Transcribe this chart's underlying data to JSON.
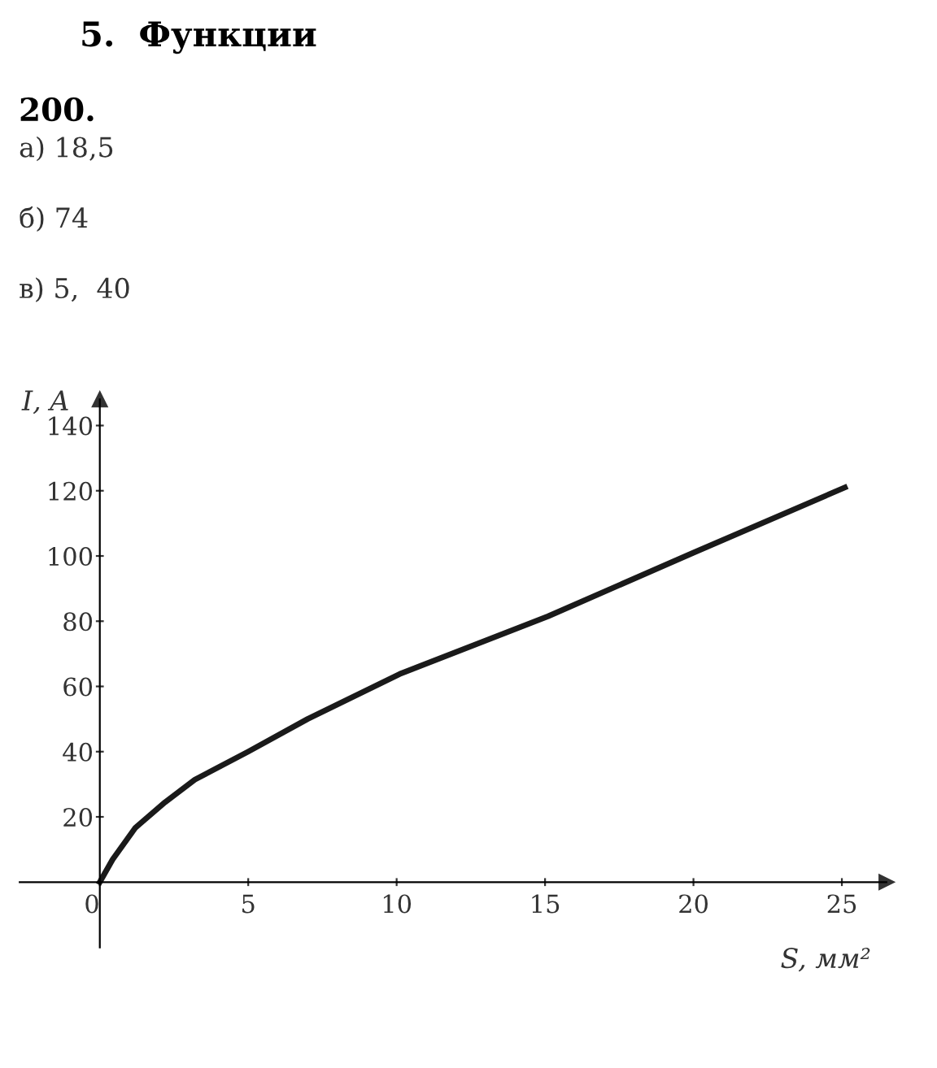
{
  "chart_data": {
    "type": "line",
    "title": "5.  Функции",
    "subtitle": "200.",
    "annotations": [
      "а) 18,5",
      "б) 74",
      "в) 5,  40"
    ],
    "xlabel": "S, мм²",
    "ylabel": "I, A",
    "series": [
      {
        "color": "#1a1a1a",
        "x": [
          0,
          0.43,
          1.2,
          2.2,
          3.2,
          5,
          7,
          10.1,
          15.1,
          20,
          25.1
        ],
        "values": [
          0,
          6.9,
          16.7,
          24.5,
          31.4,
          40,
          50,
          63.8,
          81.5,
          101,
          121
        ]
      }
    ],
    "xlim": [
      -2.7,
      26.5
    ],
    "ylim": [
      -20,
      148
    ],
    "xticks": [
      {
        "value": 0,
        "label": "0"
      },
      5,
      10,
      15,
      20,
      25
    ],
    "yticks": [
      20,
      40,
      60,
      80,
      100,
      120,
      140
    ],
    "grid": false,
    "legend": false,
    "marker": "none",
    "line_style": "solid"
  }
}
